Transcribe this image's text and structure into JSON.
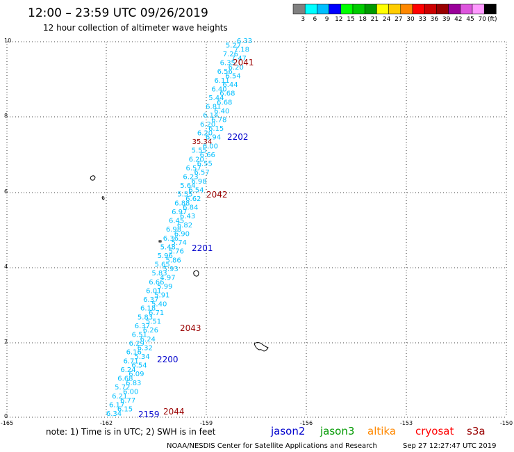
{
  "title": "12:00 – 23:59 UTC 09/26/2019",
  "subtitle": "12 hour collection of altimeter wave heights",
  "legend": {
    "colors": [
      "#808080",
      "#00ffff",
      "#00bfff",
      "#0000ff",
      "#00ff00",
      "#00cc00",
      "#009900",
      "#ffff00",
      "#ffcc00",
      "#ff8800",
      "#ff0000",
      "#cc0000",
      "#990000",
      "#990099",
      "#dd55dd",
      "#ff99ff",
      "#000000"
    ],
    "labels": [
      "3",
      "6",
      "9",
      "12",
      "15",
      "18",
      "21",
      "24",
      "27",
      "30",
      "33",
      "36",
      "39",
      "42",
      "45",
      "70"
    ],
    "unit": "(ft)"
  },
  "axes": {
    "x_ticks": [
      "-165",
      "-162",
      "-159",
      "-156",
      "-153",
      "-150"
    ],
    "y_ticks": [
      "0",
      "2",
      "4",
      "6",
      "8",
      "10"
    ]
  },
  "observations": [
    {
      "v": "6.33",
      "c": "#00bfff"
    },
    {
      "v": "5.27",
      "c": "#00bfff"
    },
    {
      "v": "7.18",
      "c": "#00bfff"
    },
    {
      "v": "7.26",
      "c": "#00bfff"
    },
    {
      "v": "7.47",
      "c": "#00bfff"
    },
    {
      "v": "6.35",
      "c": "#00bfff"
    },
    {
      "v": "6.20",
      "c": "#00bfff"
    },
    {
      "v": "6.56",
      "c": "#00bfff"
    },
    {
      "v": "6.54",
      "c": "#00bfff"
    },
    {
      "v": "6.11",
      "c": "#00bfff"
    },
    {
      "v": "6.44",
      "c": "#00bfff"
    },
    {
      "v": "6.40",
      "c": "#00bfff"
    },
    {
      "v": "6.68",
      "c": "#00bfff"
    },
    {
      "v": "5.44",
      "c": "#00bfff"
    },
    {
      "v": "6.68",
      "c": "#00bfff"
    },
    {
      "v": "6.81",
      "c": "#00bfff"
    },
    {
      "v": "6.40",
      "c": "#00bfff"
    },
    {
      "v": "6.14",
      "c": "#00bfff"
    },
    {
      "v": "6.78",
      "c": "#00bfff"
    },
    {
      "v": "6.20",
      "c": "#00bfff"
    },
    {
      "v": "6.15",
      "c": "#00bfff"
    },
    {
      "v": "6.20",
      "c": "#00bfff"
    },
    {
      "v": "6.94",
      "c": "#00bfff"
    },
    {
      "v": "35.34",
      "c": "#990000"
    },
    {
      "v": "6.00",
      "c": "#00bfff"
    },
    {
      "v": "5.55",
      "c": "#00bfff"
    },
    {
      "v": "6.66",
      "c": "#00bfff"
    },
    {
      "v": "6.20",
      "c": "#00bfff"
    },
    {
      "v": "6.55",
      "c": "#00bfff"
    },
    {
      "v": "6.57",
      "c": "#00bfff"
    },
    {
      "v": "6.57",
      "c": "#00bfff"
    },
    {
      "v": "6.23",
      "c": "#00bfff"
    },
    {
      "v": "6.98",
      "c": "#00bfff"
    },
    {
      "v": "5.64",
      "c": "#00bfff"
    },
    {
      "v": "6.54",
      "c": "#00bfff"
    },
    {
      "v": "5.55",
      "c": "#00bfff"
    },
    {
      "v": "6.62",
      "c": "#00bfff"
    },
    {
      "v": "6.88",
      "c": "#00bfff"
    },
    {
      "v": "6.84",
      "c": "#00bfff"
    },
    {
      "v": "6.97",
      "c": "#00bfff"
    },
    {
      "v": "6.43",
      "c": "#00bfff"
    },
    {
      "v": "6.45",
      "c": "#00bfff"
    },
    {
      "v": "6.82",
      "c": "#00bfff"
    },
    {
      "v": "6.98",
      "c": "#00bfff"
    },
    {
      "v": "6.90",
      "c": "#00bfff"
    },
    {
      "v": "6.36",
      "c": "#00bfff"
    },
    {
      "v": "5.74",
      "c": "#00bfff"
    },
    {
      "v": "5.48",
      "c": "#00bfff"
    },
    {
      "v": "5.76",
      "c": "#00bfff"
    },
    {
      "v": "5.96",
      "c": "#00bfff"
    },
    {
      "v": "5.86",
      "c": "#00bfff"
    },
    {
      "v": "5.65",
      "c": "#00bfff"
    },
    {
      "v": "5.93",
      "c": "#00bfff"
    },
    {
      "v": "5.83",
      "c": "#00bfff"
    },
    {
      "v": "4.97",
      "c": "#00bfff"
    },
    {
      "v": "6.66",
      "c": "#00bfff"
    },
    {
      "v": "5.99",
      "c": "#00bfff"
    },
    {
      "v": "6.01",
      "c": "#00bfff"
    },
    {
      "v": "5.91",
      "c": "#00bfff"
    },
    {
      "v": "6.37",
      "c": "#00bfff"
    },
    {
      "v": "5.40",
      "c": "#00bfff"
    },
    {
      "v": "6.18",
      "c": "#00bfff"
    },
    {
      "v": "6.71",
      "c": "#00bfff"
    },
    {
      "v": "5.83",
      "c": "#00bfff"
    },
    {
      "v": "5.51",
      "c": "#00bfff"
    },
    {
      "v": "6.37",
      "c": "#00bfff"
    },
    {
      "v": "6.26",
      "c": "#00bfff"
    },
    {
      "v": "6.51",
      "c": "#00bfff"
    },
    {
      "v": "6.24",
      "c": "#00bfff"
    },
    {
      "v": "6.29",
      "c": "#00bfff"
    },
    {
      "v": "6.32",
      "c": "#00bfff"
    },
    {
      "v": "6.16",
      "c": "#00bfff"
    },
    {
      "v": "5.34",
      "c": "#00bfff"
    },
    {
      "v": "6.71",
      "c": "#00bfff"
    },
    {
      "v": "6.54",
      "c": "#00bfff"
    },
    {
      "v": "6.24",
      "c": "#00bfff"
    },
    {
      "v": "6.09",
      "c": "#00bfff"
    },
    {
      "v": "6.68",
      "c": "#00bfff"
    },
    {
      "v": "6.83",
      "c": "#00bfff"
    },
    {
      "v": "5.72",
      "c": "#00bfff"
    },
    {
      "v": "6.00",
      "c": "#00bfff"
    },
    {
      "v": "6.21",
      "c": "#00bfff"
    },
    {
      "v": "6.77",
      "c": "#00bfff"
    },
    {
      "v": "6.17",
      "c": "#00bfff"
    },
    {
      "v": "6.15",
      "c": "#00bfff"
    },
    {
      "v": "6.34",
      "c": "#00bfff"
    }
  ],
  "passes": [
    {
      "id": "2041",
      "c": "#990000"
    },
    {
      "id": "2202",
      "c": "#0000cc"
    },
    {
      "id": "2042",
      "c": "#990000"
    },
    {
      "id": "2201",
      "c": "#0000cc"
    },
    {
      "id": "2043",
      "c": "#990000"
    },
    {
      "id": "2200",
      "c": "#0000cc"
    },
    {
      "id": "2159",
      "c": "#0000cc"
    },
    {
      "id": "2044",
      "c": "#990000"
    }
  ],
  "note": "note: 1) Time is in UTC; 2) SWH is in feet",
  "satellites": [
    {
      "name": "jason2",
      "c": "#0000cc"
    },
    {
      "name": "jason3",
      "c": "#009900"
    },
    {
      "name": "altika",
      "c": "#ff8800"
    },
    {
      "name": "cryosat",
      "c": "#ff0000"
    },
    {
      "name": "s3a",
      "c": "#990000"
    }
  ],
  "footer": {
    "center": "NOAA/NESDIS Center for Satellite Applications and Research",
    "timestamp": "Sep 27 12:27:47 UTC 2019"
  }
}
